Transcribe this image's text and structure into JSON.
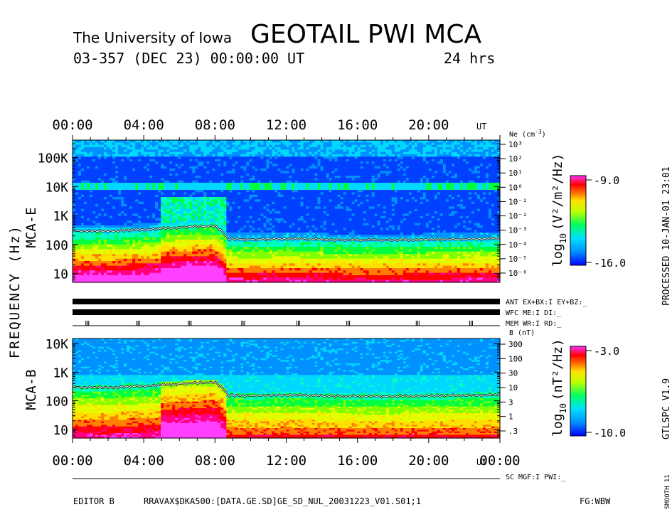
{
  "header": {
    "institution": "The University of Iowa",
    "title": "GEOTAIL PWI MCA",
    "date_line": "03-357 (DEC 23) 00:00:00 UT",
    "span": "24 hrs"
  },
  "axes": {
    "frequency_label": "FREQUENCY (Hz)",
    "time_ticks_top": [
      "00:00",
      "04:00",
      "08:00",
      "12:00",
      "16:00",
      "20:00"
    ],
    "time_ticks_bottom": [
      "00:00",
      "04:00",
      "08:00",
      "12:00",
      "16:00",
      "20:00",
      "00:00"
    ],
    "ut_label": "UT"
  },
  "panels": {
    "mca_e": {
      "label": "MCA-E",
      "freq_ticks": [
        "100K",
        "10K",
        "1K",
        "100",
        "10"
      ],
      "ne_title": "Ne (cm",
      "ne_title_exp": "-3",
      "ne_title_end": ")",
      "ne_ticks": [
        "10³",
        "10²",
        "10¹",
        "10⁰",
        "10⁻¹",
        "10⁻²",
        "10⁻³",
        "10⁻⁴",
        "10⁻⁵",
        "10⁻⁶"
      ],
      "colorbar": {
        "max_label": "-9.0",
        "min_label": "-16.0",
        "unit_prefix": "log",
        "unit_sub": "10",
        "unit": "(V²/m²/Hz)"
      }
    },
    "mca_b": {
      "label": "MCA-B",
      "freq_ticks": [
        "10K",
        "1K",
        "100",
        "10"
      ],
      "b_title": "B (nT)",
      "b_ticks": [
        "300",
        "100",
        "30",
        "10",
        "3",
        "1",
        ".3"
      ],
      "colorbar": {
        "max_label": "-3.0",
        "min_label": "-10.0",
        "unit_prefix": "log",
        "unit_sub": "10",
        "unit": "(nT²/Hz)"
      }
    }
  },
  "status": {
    "ant": "ANT EX+BX:I EY+BZ:_",
    "wfc": "WFC ME:I    DI:_",
    "mem": "MEM WR:I    RD:_",
    "sc": "SC MGF:I    PWI:_"
  },
  "right_margin": {
    "processed": "PROCESSED 10-JAN-01 23:01",
    "version": "GTLSPC   V1.9",
    "smooth": "SMOOTH 11"
  },
  "footer": {
    "editor": "EDITOR B",
    "file": "RRAVAX$DKA500:[DATA.GE.SD]GE_SD_NUL_20031223_V01.S01;1",
    "fg": "FG:WBW"
  },
  "colors": {
    "palette": [
      "#0000ff",
      "#0040ff",
      "#0090ff",
      "#00d8ff",
      "#00ffc0",
      "#00ff40",
      "#80ff00",
      "#e0ff00",
      "#ffe000",
      "#ff8000",
      "#ff0000",
      "#ff0080",
      "#ff40ff"
    ]
  },
  "chart_data": [
    {
      "type": "heatmap",
      "name": "MCA-E",
      "x": [
        0,
        2,
        4,
        6,
        7,
        8,
        8.7,
        10,
        12,
        14,
        16,
        18,
        20,
        22,
        24
      ],
      "xlabel": "UT",
      "ylabel": "FREQUENCY (Hz)",
      "yscale": "log",
      "ylim": [
        5,
        400000
      ],
      "xlim": [
        0,
        24
      ],
      "plasma_line_hz": [
        300,
        290,
        330,
        390,
        420,
        440,
        160,
        150,
        160,
        150,
        145,
        145,
        150,
        155,
        160
      ]
    },
    {
      "type": "heatmap",
      "name": "MCA-B",
      "x": [
        0,
        2,
        4,
        6,
        7,
        8,
        8.7,
        10,
        12,
        14,
        16,
        18,
        20,
        22,
        24
      ],
      "xlabel": "UT",
      "ylabel": "FREQUENCY (Hz)",
      "yscale": "log",
      "ylim": [
        5,
        15000
      ],
      "xlim": [
        0,
        24
      ],
      "plasma_line_hz": [
        300,
        290,
        330,
        390,
        420,
        440,
        160,
        150,
        160,
        150,
        145,
        145,
        150,
        155,
        160
      ]
    }
  ]
}
